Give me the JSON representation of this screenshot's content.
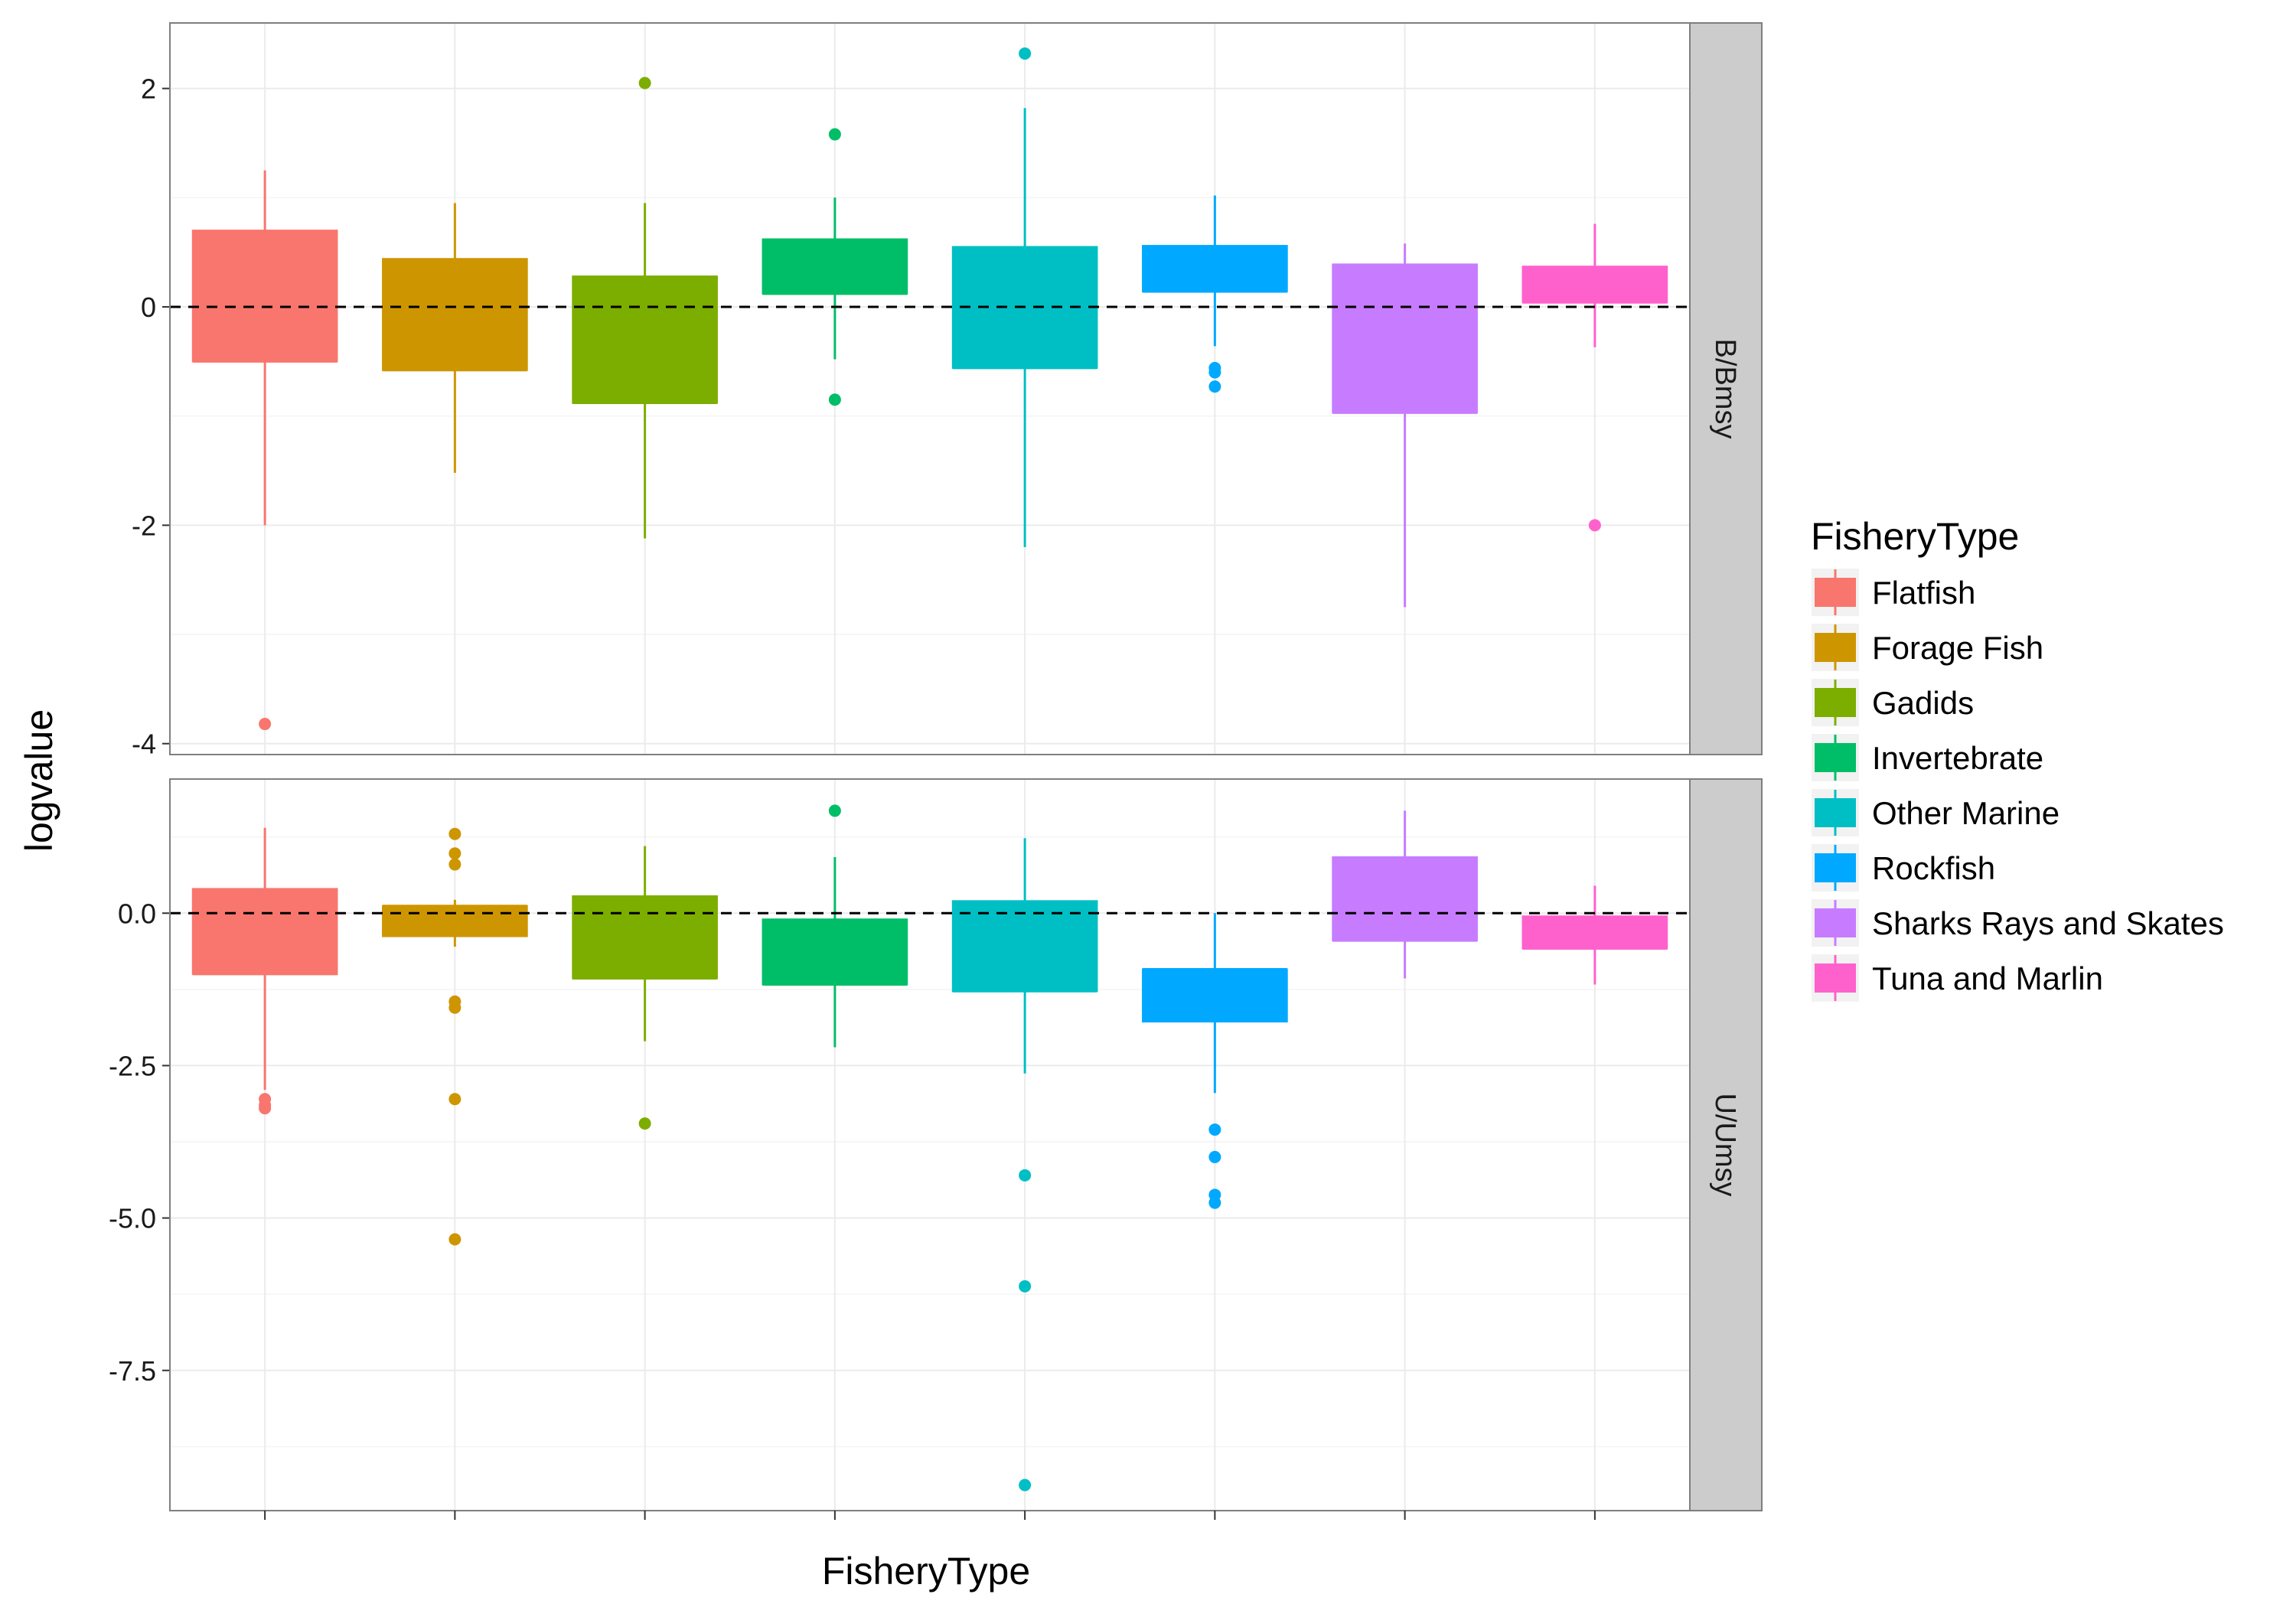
{
  "chart_data": {
    "type": "boxplot",
    "xlabel": "FisheryType",
    "ylabel": "logvalue",
    "reference_line": {
      "y": 0,
      "style": "dashed"
    },
    "legend": {
      "title": "FisheryType",
      "position": "right"
    },
    "categories": [
      "Flatfish",
      "Forage Fish",
      "Gadids",
      "Invertebrate",
      "Other Marine",
      "Rockfish",
      "Sharks Rays and Skates",
      "Tuna and Marlin"
    ],
    "colors": [
      "#F8766D",
      "#CD9600",
      "#7CAE00",
      "#00BE67",
      "#00BFC4",
      "#00A9FF",
      "#C77CFF",
      "#FF61CC"
    ],
    "panels": [
      {
        "strip": "B/Bmsy",
        "ylim": [
          -4.1,
          2.6
        ],
        "yticks": [
          -4,
          -2,
          0,
          2
        ],
        "ytick_labels": [
          "-4",
          "-2",
          "0",
          "2"
        ],
        "boxes": [
          {
            "whisker_low": -2.0,
            "q1": -0.5,
            "median": -0.5,
            "q3": 0.7,
            "whisker_high": 1.25,
            "outliers": [
              -3.82
            ]
          },
          {
            "whisker_low": -1.52,
            "q1": -0.58,
            "median": -0.58,
            "q3": 0.44,
            "whisker_high": 0.95,
            "outliers": []
          },
          {
            "whisker_low": -2.12,
            "q1": -0.88,
            "median": -0.88,
            "q3": 0.28,
            "whisker_high": 0.95,
            "outliers": [
              2.05
            ]
          },
          {
            "whisker_low": -0.48,
            "q1": 0.12,
            "median": 0.12,
            "q3": 0.62,
            "whisker_high": 1.0,
            "outliers": [
              1.58,
              -0.85
            ]
          },
          {
            "whisker_low": -2.2,
            "q1": -0.56,
            "median": -0.56,
            "q3": 0.55,
            "whisker_high": 1.82,
            "outliers": [
              2.32
            ]
          },
          {
            "whisker_low": -0.36,
            "q1": 0.14,
            "median": 0.14,
            "q3": 0.56,
            "whisker_high": 1.02,
            "outliers": [
              -0.56,
              -0.6,
              -0.73
            ]
          },
          {
            "whisker_low": -2.75,
            "q1": -0.97,
            "median": -0.97,
            "q3": 0.39,
            "whisker_high": 0.58,
            "outliers": []
          },
          {
            "whisker_low": -0.37,
            "q1": 0.04,
            "median": 0.04,
            "q3": 0.37,
            "whisker_high": 0.76,
            "outliers": [
              -2.0
            ]
          }
        ]
      },
      {
        "strip": "U/Umsy",
        "ylim": [
          -9.8,
          2.2
        ],
        "yticks": [
          -7.5,
          -5.0,
          -2.5,
          0.0
        ],
        "ytick_labels": [
          "-7.5",
          "-5.0",
          "-2.5",
          "0.0"
        ],
        "boxes": [
          {
            "whisker_low": -2.9,
            "q1": -1.0,
            "median": -1.0,
            "q3": 0.4,
            "whisker_high": 1.4,
            "outliers": [
              -3.05,
              -3.15,
              -3.2
            ]
          },
          {
            "whisker_low": -0.55,
            "q1": -0.38,
            "median": 0.12,
            "q3": 0.12,
            "whisker_high": 0.22,
            "outliers": [
              1.3,
              0.98,
              0.8,
              -1.45,
              -1.55,
              -3.05,
              -5.35
            ]
          },
          {
            "whisker_low": -2.1,
            "q1": -1.07,
            "median": -1.07,
            "q3": 0.28,
            "whisker_high": 1.1,
            "outliers": [
              -3.45
            ]
          },
          {
            "whisker_low": -2.2,
            "q1": -1.17,
            "median": -1.17,
            "q3": -0.1,
            "whisker_high": 0.92,
            "outliers": [
              1.68
            ]
          },
          {
            "whisker_low": -2.63,
            "q1": -1.28,
            "median": -1.28,
            "q3": 0.2,
            "whisker_high": 1.23,
            "outliers": [
              -4.3,
              -6.12,
              -9.38
            ]
          },
          {
            "whisker_low": -2.95,
            "q1": -1.78,
            "median": -0.92,
            "q3": -0.92,
            "whisker_high": 0.0,
            "outliers": [
              -3.55,
              -4.0,
              -4.62,
              -4.75
            ]
          },
          {
            "whisker_low": -1.07,
            "q1": -0.45,
            "median": -0.45,
            "q3": 0.92,
            "whisker_high": 1.68,
            "outliers": []
          },
          {
            "whisker_low": -1.17,
            "q1": -0.58,
            "median": -0.58,
            "q3": -0.05,
            "whisker_high": 0.45,
            "outliers": []
          }
        ]
      }
    ]
  }
}
